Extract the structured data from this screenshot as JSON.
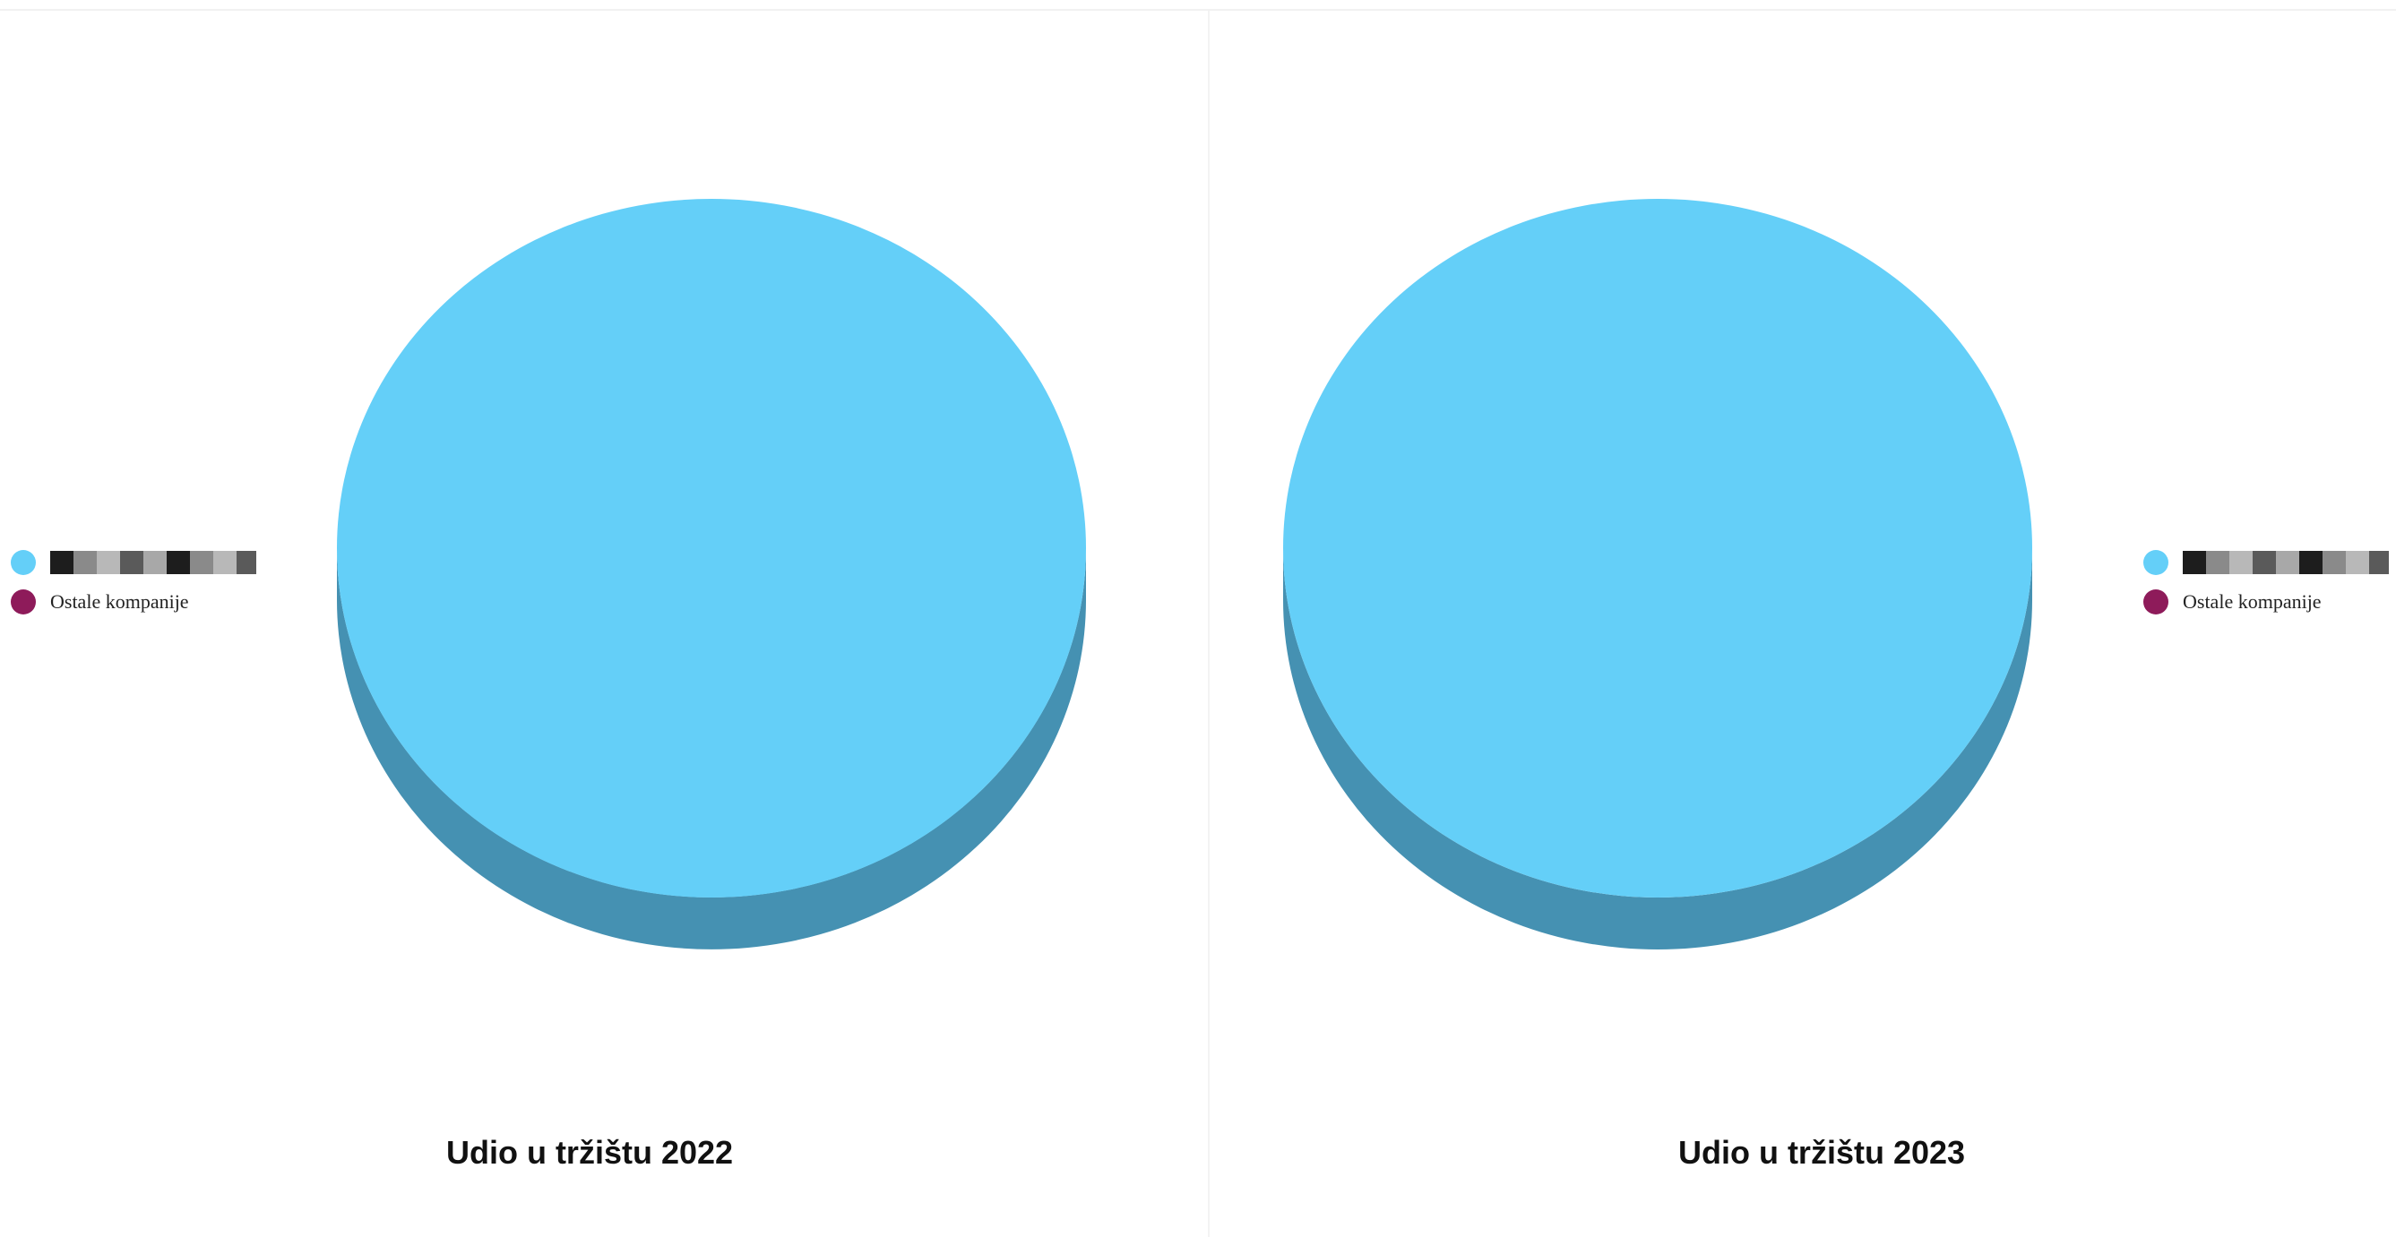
{
  "chart_data": [
    {
      "type": "pie",
      "title": "Udio u tržištu 2022",
      "legend_position": "left",
      "slices": [
        {
          "label": "",
          "value": 100,
          "color": "#64cff8"
        },
        {
          "label": "Ostale kompanije",
          "value": 0,
          "color": "#8e1b5a"
        }
      ]
    },
    {
      "type": "pie",
      "title": "Udio u tržištu 2023",
      "legend_position": "right",
      "slices": [
        {
          "label": "",
          "value": 100,
          "color": "#64cff8"
        },
        {
          "label": "Ostale kompanije",
          "value": 0,
          "color": "#8e1b5a"
        }
      ]
    }
  ],
  "colors": {
    "pie_side": "#4591b2",
    "divider": "#f3f3f3"
  }
}
